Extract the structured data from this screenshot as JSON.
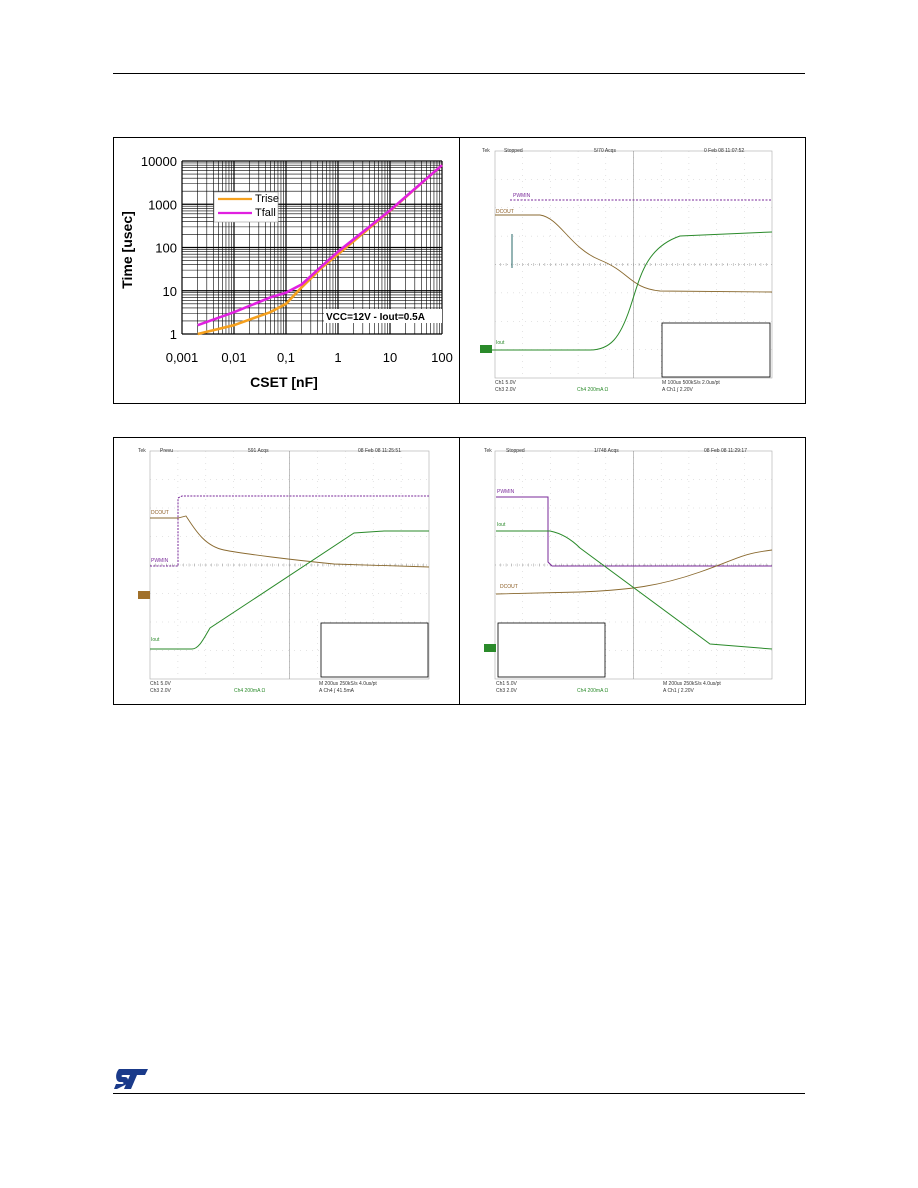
{
  "chart_data": {
    "type": "line",
    "xscale": "log",
    "yscale": "log",
    "xlabel": "CSET [nF]",
    "ylabel": "Time [usec]",
    "xlim": [
      0.001,
      100
    ],
    "ylim": [
      1,
      10000
    ],
    "xticks": [
      "0,001",
      "0,01",
      "0,1",
      "1",
      "10",
      "100"
    ],
    "yticks": [
      "1",
      "10",
      "100",
      "1000",
      "10000"
    ],
    "grid": true,
    "legend_position": "top-left",
    "annotation": "VCC=12V - Iout=0.5A",
    "series": [
      {
        "name": "Trise",
        "color": "#f5a01e",
        "x": [
          0.002,
          0.01,
          0.05,
          0.1,
          0.2,
          0.5,
          1,
          10,
          100
        ],
        "y": [
          1,
          1.6,
          3.2,
          5,
          12,
          35,
          70,
          700,
          8000
        ]
      },
      {
        "name": "Tfall",
        "color": "#e020e0",
        "x": [
          0.002,
          0.01,
          0.05,
          0.1,
          0.2,
          0.5,
          1,
          10,
          100
        ],
        "y": [
          1.6,
          3.2,
          7,
          9,
          14,
          38,
          80,
          720,
          8000
        ]
      }
    ]
  },
  "scope1": {
    "status_left": "Tek",
    "status_run": "Stopped",
    "status_acqs": "5/70 Acqs",
    "status_date": "0 Feb 08 11:07:52",
    "trace_labels": {
      "purple": "PWMIN",
      "brown": "DCOUT",
      "green": "Iout"
    },
    "footer1": "Ch1    5.0V",
    "footer2": "Ch3    2.0V",
    "footer3": "Ch4    200mA Ω",
    "footer4": "M 100us 500kS/s    2.0us/pt",
    "footer5": "A  Ch1 ∫  2.20V"
  },
  "scope2": {
    "status_left": "Tek",
    "status_run": "Prevu",
    "status_acqs": "591 Acqs",
    "status_date": "08 Feb 08 11:25:51",
    "trace_labels": {
      "purple": "PWMIN",
      "brown": "DCOUT",
      "green": "Iout"
    },
    "footer1": "Ch1    5.0V",
    "footer2": "Ch3    2.0V",
    "footer3": "Ch4    200mA Ω",
    "footer4": "M 200us 250kS/s    4.0us/pt",
    "footer5": "A  Ch4 ∫  41.5mA"
  },
  "scope3": {
    "status_left": "Tek",
    "status_run": "Stopped",
    "status_acqs": "1/748 Acqs",
    "status_date": "08 Feb 08 11:29:17",
    "trace_labels": {
      "purple": "PWMIN",
      "brown": "DCOUT",
      "green": "Iout"
    },
    "footer1": "Ch1    5.0V",
    "footer2": "Ch3    2.0V",
    "footer3": "Ch4    200mA Ω",
    "footer4": "M 200us 250kS/s    4.0us/pt",
    "footer5": "A  Ch1 ∫  2.20V"
  }
}
